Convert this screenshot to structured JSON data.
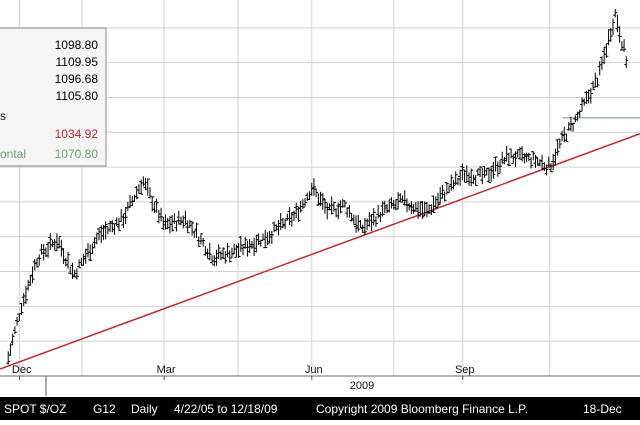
{
  "chart_data": {
    "type": "ohlc",
    "ylim": [
      700,
      1240
    ],
    "grid": true,
    "x_ticks": [
      {
        "label": "Dec",
        "day": 7
      },
      {
        "label": "Mar",
        "day": 95
      },
      {
        "label": "Jun",
        "day": 185
      },
      {
        "label": "Sep",
        "day": 277
      }
    ],
    "year_label": "2009",
    "legend": {
      "values": [
        {
          "text": "1098.80",
          "color": "#000000"
        },
        {
          "text": "1109.95",
          "color": "#000000"
        },
        {
          "text": "1096.68",
          "color": "#000000"
        },
        {
          "text": "1105.80",
          "color": "#000000"
        },
        {
          "text": "1034.92",
          "color": "#cc1f2a"
        },
        {
          "text": "1070.80",
          "color": "#6a9e70"
        }
      ],
      "label_fragments": [
        "s",
        "ontal"
      ]
    },
    "trendline": {
      "start": {
        "day": -5,
        "value": 710
      },
      "end": {
        "day": 385,
        "value": 1048
      },
      "color": "#c0292f"
    },
    "horizontal_line": {
      "start_day": 338,
      "end_day": 385,
      "value": 1070.8,
      "color": "#6a9e70"
    },
    "price_path": [
      {
        "day": 0,
        "value": 725
      },
      {
        "day": 8,
        "value": 800
      },
      {
        "day": 18,
        "value": 870
      },
      {
        "day": 30,
        "value": 895
      },
      {
        "day": 40,
        "value": 845
      },
      {
        "day": 55,
        "value": 900
      },
      {
        "day": 70,
        "value": 925
      },
      {
        "day": 82,
        "value": 980
      },
      {
        "day": 95,
        "value": 915
      },
      {
        "day": 108,
        "value": 925
      },
      {
        "day": 125,
        "value": 870
      },
      {
        "day": 140,
        "value": 880
      },
      {
        "day": 158,
        "value": 900
      },
      {
        "day": 175,
        "value": 930
      },
      {
        "day": 185,
        "value": 970
      },
      {
        "day": 195,
        "value": 935
      },
      {
        "day": 205,
        "value": 945
      },
      {
        "day": 215,
        "value": 910
      },
      {
        "day": 228,
        "value": 935
      },
      {
        "day": 240,
        "value": 950
      },
      {
        "day": 255,
        "value": 935
      },
      {
        "day": 265,
        "value": 960
      },
      {
        "day": 278,
        "value": 990
      },
      {
        "day": 290,
        "value": 985
      },
      {
        "day": 305,
        "value": 1015
      },
      {
        "day": 320,
        "value": 1010
      },
      {
        "day": 330,
        "value": 1000
      },
      {
        "day": 338,
        "value": 1040
      },
      {
        "day": 348,
        "value": 1075
      },
      {
        "day": 360,
        "value": 1130
      },
      {
        "day": 370,
        "value": 1220
      },
      {
        "day": 378,
        "value": 1140
      }
    ]
  },
  "footer": {
    "ticker": "SPOT $/OZ",
    "page": "G12",
    "period": "Daily",
    "range": "4/22/05 to 12/18/09",
    "copyright": "Copyright 2009 Bloomberg Finance L.P.",
    "date": "18-Dec"
  },
  "colors": {
    "bars": "#000000",
    "grid": "#d2d2d2",
    "footer_bg": "#000000"
  }
}
